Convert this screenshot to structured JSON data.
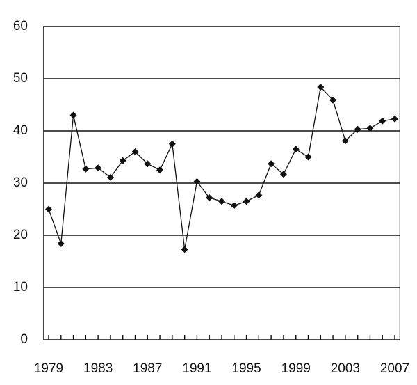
{
  "chart_data": {
    "type": "line",
    "categories": [
      "1979",
      null,
      null,
      null,
      "1983",
      null,
      null,
      null,
      "1987",
      null,
      null,
      null,
      "1991",
      null,
      null,
      null,
      "1995",
      null,
      null,
      null,
      "1999",
      null,
      null,
      null,
      "2003",
      null,
      null,
      null,
      "2007"
    ],
    "values": [
      25,
      18.4,
      43,
      32.7,
      32.9,
      31.1,
      34.3,
      36,
      33.7,
      32.5,
      37.5,
      17.3,
      30.3,
      27.2,
      26.5,
      25.7,
      26.5,
      27.7,
      33.7,
      31.7,
      36.5,
      35,
      48.4,
      45.9,
      38.1,
      40.3,
      40.5,
      41.9,
      42.3
    ],
    "color": "#111111",
    "ylim": [
      0,
      60
    ],
    "yticks": [
      0,
      10,
      20,
      30,
      40,
      50,
      60
    ],
    "grid": true
  }
}
